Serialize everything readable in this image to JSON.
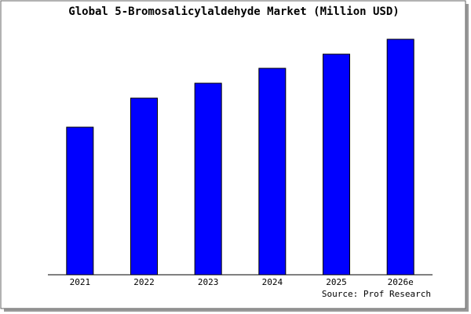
{
  "chart_data": {
    "type": "bar",
    "title": "Global 5-Bromosalicylaldehyde Market (Million USD)",
    "categories": [
      "2021",
      "2022",
      "2023",
      "2024",
      "2025",
      "2026e"
    ],
    "values": [
      18.8,
      22.5,
      24.4,
      26.3,
      28.1,
      30.0
    ],
    "color": "#0000ff",
    "ylim": [
      0,
      30.5
    ],
    "source": "Source: Prof Research"
  }
}
